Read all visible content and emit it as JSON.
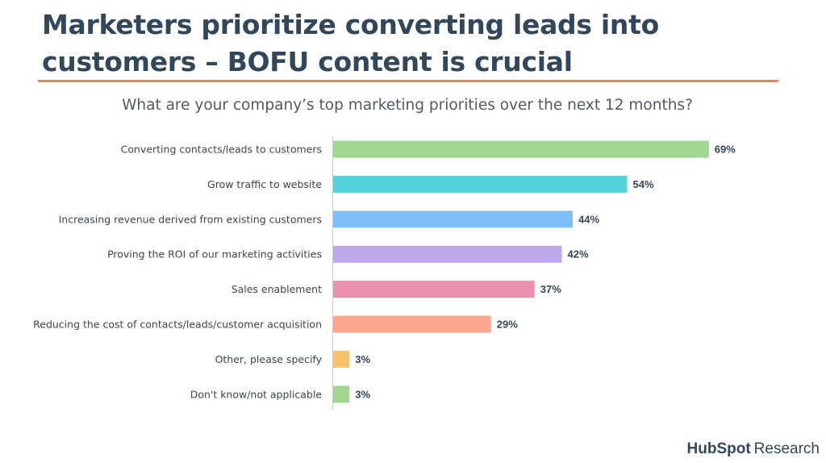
{
  "slide": {
    "title": "Marketers prioritize converting leads into customers – BOFU content is crucial"
  },
  "chart_data": {
    "type": "bar",
    "orientation": "horizontal",
    "title": "What are your company’s top marketing priorities over the next 12 months?",
    "xlabel": "",
    "ylabel": "",
    "xlim": [
      0,
      100
    ],
    "grid": false,
    "value_suffix": "%",
    "categories": [
      "Converting contacts/leads to customers",
      "Grow traffic to website",
      "Increasing revenue derived from existing customers",
      "Proving the ROI of our marketing activities",
      "Sales enablement",
      "Reducing the cost of contacts/leads/customer acquisition",
      "Other, please specify",
      "Don't know/not applicable"
    ],
    "values": [
      69,
      54,
      44,
      42,
      37,
      29,
      3,
      3
    ],
    "data_labels": [
      "69%",
      "54%",
      "44%",
      "42%",
      "37%",
      "29%",
      "3%",
      "3%"
    ],
    "colors": [
      "#a0d68f",
      "#51d3d9",
      "#7fbef9",
      "#bda9ea",
      "#ea90b1",
      "#fea58e",
      "#f5c26b",
      "#a0d68f"
    ]
  },
  "brand": {
    "name": "HubSpot",
    "suffix": "Research",
    "color": "#33475b",
    "accent": "#ff7a59"
  }
}
